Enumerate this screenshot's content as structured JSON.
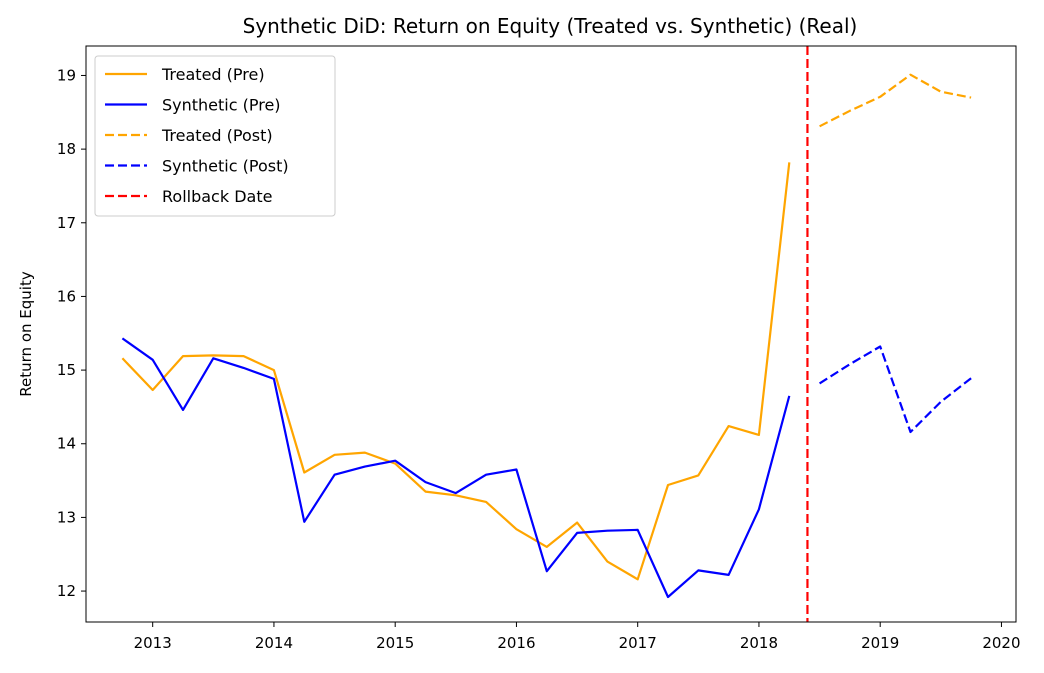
{
  "chart_data": {
    "type": "line",
    "title": "Synthetic DiD: Return on Equity (Treated vs. Synthetic) (Real)",
    "xlabel": "",
    "ylabel": "Return on Equity",
    "xlim": [
      2012.45,
      2020.12
    ],
    "ylim": [
      11.58,
      19.4
    ],
    "x_ticks": [
      2013,
      2014,
      2015,
      2016,
      2017,
      2018,
      2019,
      2020
    ],
    "y_ticks": [
      12,
      13,
      14,
      15,
      16,
      17,
      18,
      19
    ],
    "grid": false,
    "legend_position": "upper-left",
    "series": [
      {
        "name": "Treated (Pre)",
        "color": "#FFA500",
        "style": "solid",
        "x": [
          2012.75,
          2013.0,
          2013.25,
          2013.5,
          2013.75,
          2014.0,
          2014.25,
          2014.5,
          2014.75,
          2015.0,
          2015.25,
          2015.5,
          2015.75,
          2016.0,
          2016.25,
          2016.5,
          2016.75,
          2017.0,
          2017.25,
          2017.5,
          2017.75,
          2018.0,
          2018.25
        ],
        "y": [
          15.16,
          14.73,
          15.19,
          15.2,
          15.19,
          15.0,
          13.61,
          13.85,
          13.88,
          13.73,
          13.35,
          13.3,
          13.21,
          12.84,
          12.6,
          12.93,
          12.4,
          12.16,
          13.44,
          13.57,
          14.24,
          14.12,
          17.82
        ]
      },
      {
        "name": "Synthetic (Pre)",
        "color": "#0000FF",
        "style": "solid",
        "x": [
          2012.75,
          2013.0,
          2013.25,
          2013.5,
          2013.75,
          2014.0,
          2014.25,
          2014.5,
          2014.75,
          2015.0,
          2015.25,
          2015.5,
          2015.75,
          2016.0,
          2016.25,
          2016.5,
          2016.75,
          2017.0,
          2017.25,
          2017.5,
          2017.75,
          2018.0,
          2018.25
        ],
        "y": [
          15.43,
          15.14,
          14.46,
          15.16,
          15.03,
          14.88,
          12.94,
          13.58,
          13.69,
          13.77,
          13.48,
          13.33,
          13.58,
          13.65,
          12.27,
          12.79,
          12.82,
          12.83,
          11.92,
          12.28,
          12.22,
          13.11,
          14.65
        ]
      },
      {
        "name": "Treated (Post)",
        "color": "#FFA500",
        "style": "dashed",
        "x": [
          2018.5,
          2018.75,
          2019.0,
          2019.25,
          2019.5,
          2019.75
        ],
        "y": [
          18.31,
          18.52,
          18.71,
          19.01,
          18.78,
          18.7
        ]
      },
      {
        "name": "Synthetic (Post)",
        "color": "#0000FF",
        "style": "dashed",
        "x": [
          2018.5,
          2018.75,
          2019.0,
          2019.25,
          2019.5,
          2019.75
        ],
        "y": [
          14.82,
          15.08,
          15.32,
          14.16,
          14.57,
          14.89
        ]
      }
    ],
    "vlines": [
      {
        "name": "Rollback Date",
        "x": 2018.4,
        "color": "#FF0000",
        "style": "dashed"
      }
    ]
  }
}
